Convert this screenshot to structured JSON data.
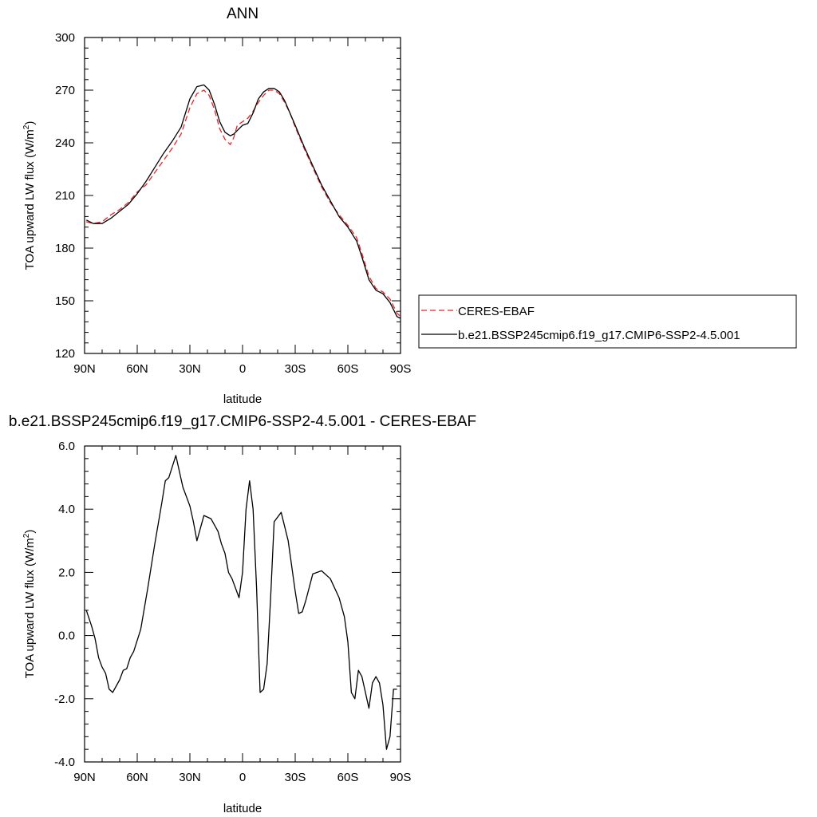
{
  "chart_data": [
    {
      "type": "line",
      "title": "ANN",
      "xlabel": "latitude",
      "ylabel_main": "TOA upward LW flux (W/m",
      "ylabel_sup": "2",
      "ylabel_close": ")",
      "x_ticks": [
        {
          "value": 90,
          "label": "90N"
        },
        {
          "value": 60,
          "label": "60N"
        },
        {
          "value": 30,
          "label": "30N"
        },
        {
          "value": 0,
          "label": "0"
        },
        {
          "value": -30,
          "label": "30S"
        },
        {
          "value": -60,
          "label": "60S"
        },
        {
          "value": -90,
          "label": "90S"
        }
      ],
      "y_ticks": [
        {
          "value": 300,
          "label": "300"
        },
        {
          "value": 270,
          "label": "270"
        },
        {
          "value": 240,
          "label": "240"
        },
        {
          "value": 210,
          "label": "210"
        },
        {
          "value": 180,
          "label": "180"
        },
        {
          "value": 150,
          "label": "150"
        },
        {
          "value": 120,
          "label": "120"
        }
      ],
      "xlim": [
        90,
        -90
      ],
      "ylim": [
        120,
        300
      ],
      "grid": false,
      "legend_position": "right",
      "series": [
        {
          "name": "CERES-EBAF",
          "color": "#e8232a",
          "dash": "dashed",
          "x": [
            89,
            85,
            80,
            75,
            70,
            65,
            60,
            55,
            50,
            45,
            40,
            35,
            30,
            26,
            22,
            19,
            16,
            13,
            10,
            7,
            5,
            3,
            0,
            -3,
            -6,
            -9,
            -12,
            -15,
            -18,
            -21,
            -24,
            -27,
            -30,
            -35,
            -40,
            -45,
            -50,
            -55,
            -60,
            -65,
            -68,
            -72,
            -76,
            -80,
            -84,
            -88,
            -90
          ],
          "y": [
            195,
            194,
            195,
            199,
            202,
            206,
            212,
            216,
            223,
            230,
            237,
            245,
            260,
            268,
            270,
            267,
            259,
            248,
            242,
            239,
            243,
            250,
            252,
            254,
            258,
            263,
            267,
            270,
            270,
            268,
            263,
            257,
            249,
            237,
            226,
            215,
            206,
            199,
            193,
            186,
            177,
            164,
            157,
            155,
            151,
            143,
            141
          ]
        },
        {
          "name": "b.e21.BSSP245cmip6.f19_g17.CMIP6-SSP2-4.5.001",
          "color": "#000000",
          "dash": "solid",
          "x": [
            89,
            85,
            80,
            75,
            70,
            65,
            60,
            55,
            50,
            45,
            40,
            35,
            30,
            26,
            22,
            19,
            16,
            13,
            10,
            7,
            5,
            3,
            0,
            -3,
            -6,
            -9,
            -12,
            -15,
            -18,
            -21,
            -24,
            -27,
            -30,
            -35,
            -40,
            -45,
            -50,
            -55,
            -60,
            -65,
            -68,
            -72,
            -76,
            -80,
            -84,
            -88,
            -90
          ],
          "y": [
            196,
            194,
            194,
            197,
            201,
            205,
            211,
            218,
            226,
            234,
            241,
            249,
            265,
            272,
            273,
            270,
            262,
            252,
            246,
            244,
            245,
            247,
            250,
            251,
            257,
            265,
            269,
            271,
            271,
            269,
            264,
            257,
            250,
            238,
            227,
            216,
            207,
            198,
            192,
            184,
            175,
            162,
            156,
            154,
            149,
            141,
            140
          ]
        }
      ]
    },
    {
      "type": "line",
      "title": "b.e21.BSSP245cmip6.f19_g17.CMIP6-SSP2-4.5.001 - CERES-EBAF",
      "xlabel": "latitude",
      "ylabel_main": "TOA upward LW flux (W/m",
      "ylabel_sup": "2",
      "ylabel_close": ")",
      "x_ticks": [
        {
          "value": 90,
          "label": "90N"
        },
        {
          "value": 60,
          "label": "60N"
        },
        {
          "value": 30,
          "label": "30N"
        },
        {
          "value": 0,
          "label": "0"
        },
        {
          "value": -30,
          "label": "30S"
        },
        {
          "value": -60,
          "label": "60S"
        },
        {
          "value": -90,
          "label": "90S"
        }
      ],
      "y_ticks": [
        {
          "value": 6,
          "label": "6.0"
        },
        {
          "value": 4,
          "label": "4.0"
        },
        {
          "value": 2,
          "label": "2.0"
        },
        {
          "value": 0,
          "label": "0.0"
        },
        {
          "value": -2,
          "label": "-2.0"
        },
        {
          "value": -4,
          "label": "-4.0"
        }
      ],
      "xlim": [
        90,
        -90
      ],
      "ylim": [
        -4,
        6
      ],
      "grid": false,
      "series": [
        {
          "color": "#000000",
          "dash": "solid",
          "x": [
            89,
            86,
            84,
            82,
            80,
            78,
            76,
            74,
            72,
            70,
            68,
            66,
            64,
            62,
            58,
            54,
            50,
            46,
            44,
            42,
            38,
            34,
            30,
            28,
            26,
            22,
            18,
            14,
            12,
            10,
            8,
            6,
            2,
            0,
            -2,
            -4,
            -6,
            -8,
            -10,
            -12,
            -14,
            -16,
            -18,
            -22,
            -26,
            -30,
            -32,
            -34,
            -36,
            -40,
            -45,
            -50,
            -55,
            -58,
            -60,
            -62,
            -64,
            -66,
            -68,
            -70,
            -72,
            -74,
            -76,
            -78,
            -80,
            -82,
            -84,
            -86,
            -88
          ],
          "y": [
            0.8,
            0.3,
            -0.1,
            -0.7,
            -1.0,
            -1.2,
            -1.7,
            -1.8,
            -1.6,
            -1.4,
            -1.1,
            -1.05,
            -0.7,
            -0.5,
            0.2,
            1.5,
            2.9,
            4.2,
            4.9,
            5.0,
            5.7,
            4.7,
            4.1,
            3.6,
            3.0,
            3.8,
            3.7,
            3.3,
            2.9,
            2.6,
            2.0,
            1.8,
            1.2,
            2.0,
            4.0,
            4.9,
            4.0,
            1.5,
            -1.8,
            -1.7,
            -0.9,
            1.2,
            3.6,
            3.9,
            3.0,
            1.4,
            0.7,
            0.75,
            1.1,
            1.95,
            2.05,
            1.8,
            1.2,
            0.6,
            -0.2,
            -1.8,
            -2.0,
            -1.1,
            -1.3,
            -1.8,
            -2.3,
            -1.5,
            -1.3,
            -1.5,
            -2.2,
            -3.6,
            -3.2,
            -1.7,
            -1.7
          ]
        }
      ]
    }
  ]
}
